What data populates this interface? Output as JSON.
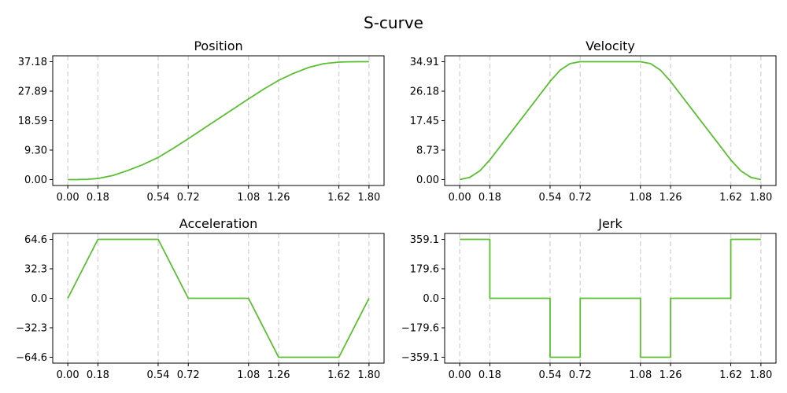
{
  "title": "S-curve",
  "colors": {
    "curve": "#5bbf32",
    "vline": "#d9d9d9",
    "axis": "#000000"
  },
  "chart_data": [
    {
      "id": "position",
      "type": "line",
      "title": "Position",
      "grid": false,
      "vlines_at": [
        0.0,
        0.18,
        0.54,
        0.72,
        1.08,
        1.26,
        1.62,
        1.8
      ],
      "xticks": [
        "0.00",
        "0.18",
        "0.54",
        "0.72",
        "1.08",
        "1.26",
        "1.62",
        "1.80"
      ],
      "xtick_values": [
        0.0,
        0.18,
        0.54,
        0.72,
        1.08,
        1.26,
        1.62,
        1.8
      ],
      "yticks": [
        "0.00",
        "9.30",
        "18.59",
        "27.89",
        "37.18"
      ],
      "ytick_values": [
        0.0,
        9.3,
        18.59,
        27.89,
        37.18
      ],
      "xlim": [
        -0.09,
        1.89
      ],
      "ylim": [
        -1.86,
        39.04
      ],
      "series": [
        {
          "x": [
            0.0,
            0.06,
            0.12,
            0.18,
            0.27,
            0.36,
            0.45,
            0.54,
            0.63,
            0.72,
            0.81,
            0.9,
            0.99,
            1.08,
            1.17,
            1.26,
            1.35,
            1.44,
            1.53,
            1.62,
            1.68,
            1.74,
            1.8
          ],
          "y": [
            0.0,
            0.01,
            0.1,
            0.35,
            1.3,
            2.9,
            4.75,
            6.98,
            9.85,
            12.9,
            16.04,
            19.18,
            22.32,
            25.45,
            28.5,
            31.3,
            33.53,
            35.38,
            36.56,
            37.05,
            37.15,
            37.18,
            37.18
          ]
        }
      ]
    },
    {
      "id": "velocity",
      "type": "line",
      "title": "Velocity",
      "grid": false,
      "vlines_at": [
        0.0,
        0.18,
        0.54,
        0.72,
        1.08,
        1.26,
        1.62,
        1.8
      ],
      "xticks": [
        "0.00",
        "0.18",
        "0.54",
        "0.72",
        "1.08",
        "1.26",
        "1.62",
        "1.80"
      ],
      "xtick_values": [
        0.0,
        0.18,
        0.54,
        0.72,
        1.08,
        1.26,
        1.62,
        1.8
      ],
      "yticks": [
        "0.00",
        "8.73",
        "17.45",
        "26.18",
        "34.91"
      ],
      "ytick_values": [
        0.0,
        8.73,
        17.45,
        26.18,
        34.91
      ],
      "xlim": [
        -0.09,
        1.89
      ],
      "ylim": [
        -1.75,
        36.66
      ],
      "series": [
        {
          "x": [
            0.0,
            0.06,
            0.12,
            0.18,
            0.27,
            0.36,
            0.45,
            0.54,
            0.6,
            0.66,
            0.72,
            1.08,
            1.14,
            1.2,
            1.26,
            1.35,
            1.44,
            1.53,
            1.62,
            1.68,
            1.74,
            1.8
          ],
          "y": [
            0.0,
            0.65,
            2.59,
            5.82,
            11.64,
            17.45,
            23.27,
            29.09,
            32.4,
            34.35,
            34.91,
            34.91,
            34.35,
            32.4,
            29.09,
            23.27,
            17.45,
            11.64,
            5.82,
            2.59,
            0.65,
            0.0
          ]
        }
      ]
    },
    {
      "id": "acceleration",
      "type": "line",
      "title": "Acceleration",
      "grid": false,
      "vlines_at": [
        0.0,
        0.18,
        0.54,
        0.72,
        1.08,
        1.26,
        1.62,
        1.8
      ],
      "xticks": [
        "0.00",
        "0.18",
        "0.54",
        "0.72",
        "1.08",
        "1.26",
        "1.62",
        "1.80"
      ],
      "xtick_values": [
        0.0,
        0.18,
        0.54,
        0.72,
        1.08,
        1.26,
        1.62,
        1.8
      ],
      "yticks": [
        "−64.6",
        "−32.3",
        "0.0",
        "32.3",
        "64.6"
      ],
      "ytick_values": [
        -64.6,
        -32.3,
        0.0,
        32.3,
        64.6
      ],
      "xlim": [
        -0.09,
        1.89
      ],
      "ylim": [
        -71.06,
        71.06
      ],
      "series": [
        {
          "x": [
            0.0,
            0.18,
            0.54,
            0.72,
            1.08,
            1.26,
            1.62,
            1.8
          ],
          "y": [
            0.0,
            64.6,
            64.6,
            0.0,
            0.0,
            -64.6,
            -64.6,
            0.0
          ]
        }
      ]
    },
    {
      "id": "jerk",
      "type": "line",
      "title": "Jerk",
      "grid": false,
      "vlines_at": [
        0.0,
        0.18,
        0.54,
        0.72,
        1.08,
        1.26,
        1.62,
        1.8
      ],
      "xticks": [
        "0.00",
        "0.18",
        "0.54",
        "0.72",
        "1.08",
        "1.26",
        "1.62",
        "1.80"
      ],
      "xtick_values": [
        0.0,
        0.18,
        0.54,
        0.72,
        1.08,
        1.26,
        1.62,
        1.8
      ],
      "yticks": [
        "−359.1",
        "−179.6",
        "0.0",
        "179.6",
        "359.1"
      ],
      "ytick_values": [
        -359.1,
        -179.6,
        0.0,
        179.6,
        359.1
      ],
      "xlim": [
        -0.09,
        1.89
      ],
      "ylim": [
        -395.0,
        395.0
      ],
      "series": [
        {
          "x": [
            0.0,
            0.18,
            0.18,
            0.54,
            0.54,
            0.72,
            0.72,
            1.08,
            1.08,
            1.26,
            1.26,
            1.62,
            1.62,
            1.8
          ],
          "y": [
            359.1,
            359.1,
            0.0,
            0.0,
            -359.1,
            -359.1,
            0.0,
            0.0,
            -359.1,
            -359.1,
            0.0,
            0.0,
            359.1,
            359.1
          ]
        }
      ]
    }
  ]
}
